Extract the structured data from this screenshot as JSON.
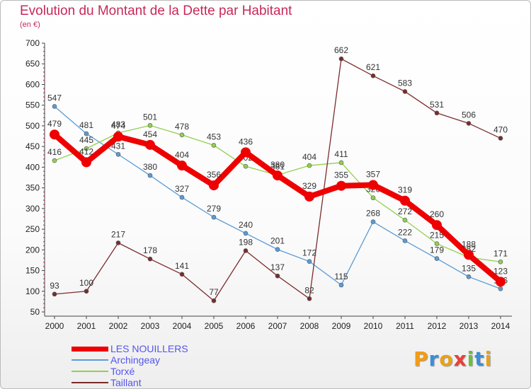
{
  "chart_data": {
    "type": "line",
    "title": "Evolution du Montant de la Dette par Habitant",
    "subtitle": "(en €)",
    "x": [
      "2000",
      "2001",
      "2002",
      "2003",
      "2004",
      "2005",
      "2006",
      "2007",
      "2008",
      "2009",
      "2010",
      "2011",
      "2012",
      "2013",
      "2014"
    ],
    "ylim": [
      50,
      700
    ],
    "yticks": [
      50,
      100,
      150,
      200,
      250,
      300,
      350,
      400,
      450,
      500,
      550,
      600,
      650,
      700
    ],
    "grid": false,
    "legend_position": "bottom-left",
    "series": [
      {
        "name": "LES NOUILLERS",
        "color": "#ee0000",
        "emphasis": true,
        "values": [
          479,
          412,
          474,
          454,
          404,
          356,
          436,
          380,
          329,
          355,
          357,
          319,
          260,
          188,
          123
        ]
      },
      {
        "name": "Archingeay",
        "color": "#5b9bd5",
        "values": [
          547,
          481,
          431,
          380,
          327,
          279,
          240,
          201,
          172,
          115,
          268,
          222,
          179,
          135,
          106
        ]
      },
      {
        "name": "Torxé",
        "color": "#92d050",
        "values": [
          416,
          445,
          483,
          501,
          478,
          453,
          402,
          381,
          404,
          411,
          326,
          272,
          215,
          182,
          171
        ]
      },
      {
        "name": "Taillant",
        "color": "#7b2c2c",
        "values": [
          93,
          100,
          217,
          178,
          141,
          77,
          198,
          137,
          82,
          662,
          621,
          583,
          531,
          506,
          470
        ]
      }
    ]
  },
  "logo": {
    "letters": [
      "P",
      "r",
      "o",
      "x",
      "i",
      "t",
      "i"
    ],
    "colors": [
      "#f39c12",
      "#3a8fd6",
      "#e8a21a",
      "#e8403a",
      "#6cbf3a",
      "#3a8fd6",
      "#e8a21a"
    ]
  }
}
